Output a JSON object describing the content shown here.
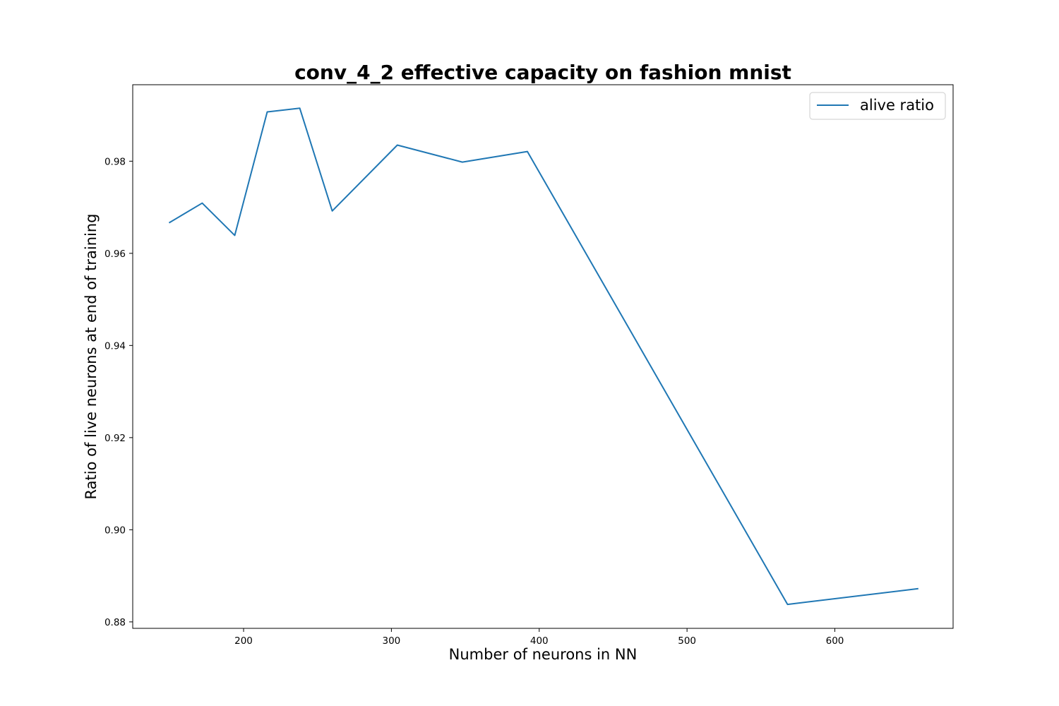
{
  "chart_data": {
    "type": "line",
    "title": "conv_4_2 effective capacity on fashion mnist",
    "xlabel": "Number of neurons in NN",
    "ylabel": "Ratio of live neurons at end of training",
    "xlim": [
      125,
      680
    ],
    "ylim": [
      0.8786,
      0.9966
    ],
    "x_ticks": [
      200,
      300,
      400,
      500,
      600
    ],
    "x_tick_labels": [
      "200",
      "300",
      "400",
      "500",
      "600"
    ],
    "y_ticks": [
      0.88,
      0.9,
      0.92,
      0.94,
      0.96,
      0.98
    ],
    "y_tick_labels": [
      "0.88",
      "0.90",
      "0.92",
      "0.94",
      "0.96",
      "0.98"
    ],
    "grid": false,
    "legend_position": "top-right",
    "series": [
      {
        "name": "alive ratio",
        "color": "#1f77b4",
        "x": [
          150,
          172,
          194,
          216,
          238,
          260,
          304,
          348,
          392,
          568,
          656
        ],
        "y": [
          0.9667,
          0.9709,
          0.9639,
          0.9907,
          0.9915,
          0.9692,
          0.9835,
          0.9798,
          0.9821,
          0.8838,
          0.8872
        ]
      }
    ]
  }
}
